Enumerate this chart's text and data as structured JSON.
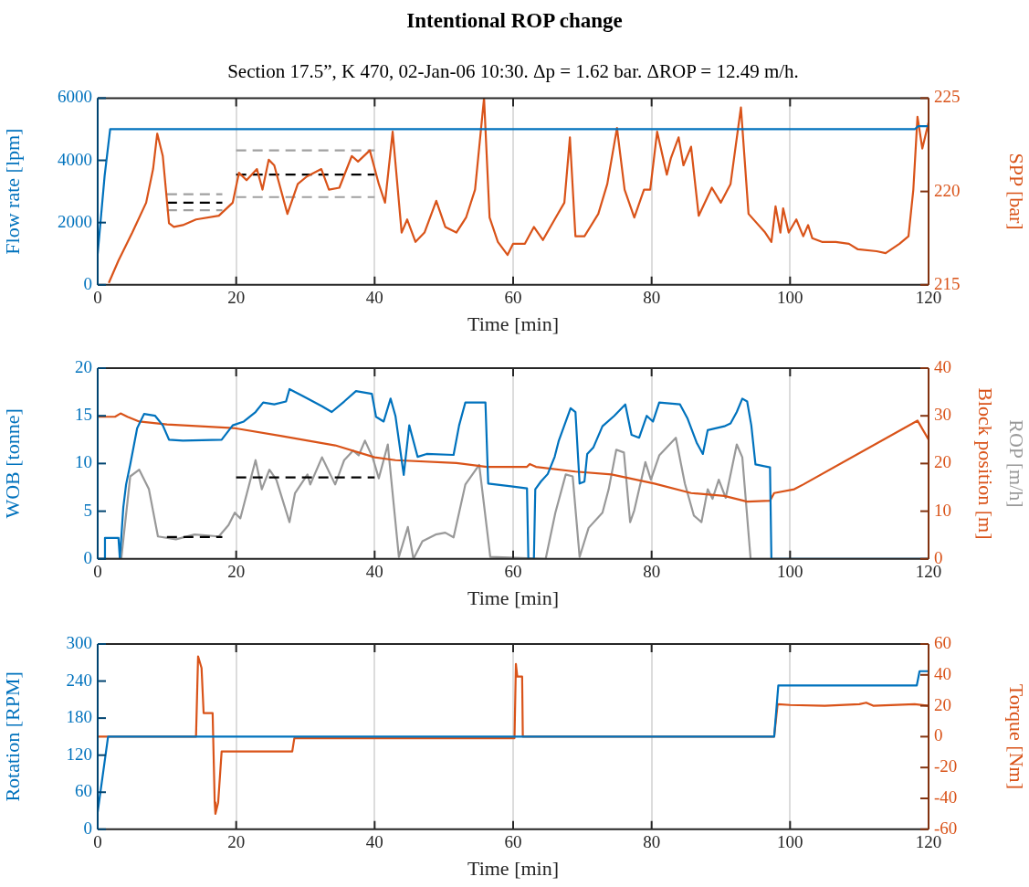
{
  "chart_data": [
    {
      "type": "line",
      "title": "Intentional ROP change",
      "subtitle": "Section 17.5”, K 470, 02-Jan-06 10:30. Δp = 1.62 bar. ΔROP = 12.49 m/h.",
      "xlabel": "Time [min]",
      "ylabel": "Flow rate [lpm]",
      "y2label": "SPP [bar]",
      "xlim": [
        0,
        120
      ],
      "xticks": [
        0,
        20,
        40,
        60,
        80,
        100,
        120
      ],
      "ylim": [
        0,
        6000
      ],
      "yticks": [
        0,
        2000,
        4000,
        6000
      ],
      "y2lim": [
        215,
        225
      ],
      "y2ticks": [
        215,
        220,
        225
      ],
      "grid": "x",
      "marker": "none",
      "series": [
        {
          "color": "#0072bd",
          "x": [
            0,
            1,
            1.8,
            60,
            118,
            118.5,
            120
          ],
          "values": [
            1000,
            3500,
            5000,
            5000,
            5000,
            5100,
            5100
          ]
        },
        {
          "color": "#d95319",
          "axis": "y2",
          "x": [
            1.6,
            3,
            5,
            7,
            8,
            8.6,
            9.4,
            10.3,
            11,
            12.3,
            14.2,
            17.5,
            19.5,
            20.4,
            21.5,
            23,
            23.8,
            24.7,
            25.5,
            27.4,
            28.9,
            30.2,
            32.3,
            33.4,
            34.9,
            36.7,
            37.6,
            39.3,
            40.6,
            41.5,
            42.6,
            43.9,
            44.7,
            45.9,
            47.2,
            48.9,
            50.2,
            51.8,
            53.2,
            54.5,
            55.8,
            56.6,
            57.8,
            59.2,
            60,
            61.7,
            63,
            64.3,
            66.3,
            67.4,
            68.2,
            69,
            70.3,
            72.3,
            73.6,
            75,
            76.1,
            77.5,
            78.9,
            79.8,
            80.8,
            82.2,
            82.8,
            83.9,
            84.6,
            85.7,
            86.8,
            88.7,
            90,
            91.4,
            92.9,
            94,
            96.4,
            97.3,
            97.9,
            98.6,
            99,
            99.8,
            100.9,
            101.9,
            102.6,
            103.2,
            104.6,
            106.6,
            108.5,
            109.8,
            112.5,
            113.8,
            115.8,
            117.1,
            117.8,
            118.4,
            119.1,
            120
          ],
          "values": [
            215.1,
            216.3,
            217.8,
            219.4,
            221.2,
            223.1,
            221.9,
            218.3,
            218.1,
            218.2,
            218.5,
            218.7,
            219.4,
            221,
            220.6,
            221.2,
            220.1,
            221.7,
            221.4,
            218.8,
            220.4,
            220.8,
            221.2,
            220.1,
            220.2,
            221.9,
            221.6,
            222.2,
            220.4,
            219.4,
            223.2,
            217.8,
            218.5,
            217.3,
            217.8,
            219.5,
            218.1,
            217.8,
            218.6,
            220.1,
            225,
            218.6,
            217.3,
            216.6,
            217.2,
            217.2,
            218.1,
            217.4,
            218.7,
            219.4,
            222.9,
            217.6,
            217.6,
            218.8,
            220.4,
            223.4,
            220.1,
            218.6,
            220.1,
            220.1,
            223.2,
            220.9,
            221.8,
            222.9,
            221.4,
            222.4,
            218.7,
            220.2,
            219.4,
            220.4,
            224.5,
            218.8,
            217.8,
            217.3,
            219.2,
            217.8,
            219.1,
            217.8,
            218.5,
            217.6,
            218.2,
            217.5,
            217.3,
            217.3,
            217.2,
            216.9,
            216.8,
            216.7,
            217.2,
            217.6,
            220.1,
            224,
            222.3,
            223.7
          ]
        },
        {
          "color": "#a0a0a0",
          "axis": "y2",
          "line_style": "dashed",
          "x": [
            10,
            18,
            19,
            20,
            40
          ],
          "values": [
            219,
            219,
            null,
            219.7,
            219.7
          ]
        },
        {
          "color": "#a0a0a0",
          "axis": "y2",
          "line_style": "dashed",
          "x": [
            10,
            18,
            19,
            20,
            40
          ],
          "values": [
            219.85,
            219.85,
            null,
            222.2,
            222.2
          ]
        },
        {
          "color": "#000000",
          "axis": "y2",
          "line_style": "dashed",
          "x": [
            10,
            18,
            19,
            20,
            40
          ],
          "values": [
            219.4,
            219.4,
            null,
            220.9,
            220.9
          ]
        }
      ]
    },
    {
      "type": "line",
      "xlabel": "Time [min]",
      "ylabel": "WOB [tonne]",
      "y2label": "Block position [m]",
      "y3label": "ROP [m/h]",
      "xlim": [
        0,
        120
      ],
      "xticks": [
        0,
        20,
        40,
        60,
        80,
        100,
        120
      ],
      "ylim": [
        0,
        20
      ],
      "yticks": [
        0,
        5,
        10,
        15,
        20
      ],
      "y2lim": [
        0,
        40
      ],
      "y2ticks": [
        0,
        10,
        20,
        30,
        40
      ],
      "grid": "x",
      "marker": "none",
      "series": [
        {
          "color": "#0072bd",
          "x": [
            0,
            1,
            1.05,
            3,
            3.2,
            3.7,
            4.1,
            4.7,
            5.7,
            6.7,
            8.3,
            9.4,
            10.3,
            12.3,
            17.9,
            19.5,
            21.1,
            22.8,
            23.9,
            25.5,
            27.2,
            27.7,
            29.8,
            32.4,
            33.8,
            35.6,
            37.3,
            39.6,
            40.2,
            41.3,
            42.3,
            43,
            44.2,
            45,
            46.2,
            47.5,
            51.4,
            52.2,
            53.1,
            56,
            56.4,
            59.7,
            62,
            62.2,
            63,
            63.2,
            64,
            65,
            66,
            66.6,
            67.4,
            68.3,
            69,
            69.6,
            70.3,
            70.7,
            71.6,
            72.9,
            74.6,
            76.2,
            77.1,
            78.2,
            79.3,
            80.2,
            81.1,
            84.1,
            85.2,
            86.5,
            87.4,
            88.1,
            90.5,
            91.4,
            92.3,
            93.1,
            93.8,
            94.4,
            95,
            97.1,
            97.3,
            120
          ],
          "values": [
            0,
            0,
            2.2,
            2.2,
            0,
            5.4,
            7.8,
            9.9,
            13.7,
            15.2,
            15,
            14,
            12.5,
            12.4,
            12.5,
            14,
            14.4,
            15.4,
            16.4,
            16.2,
            16.5,
            17.8,
            17,
            16,
            15.4,
            16.5,
            17.6,
            17.3,
            14.9,
            14.4,
            16.8,
            15,
            8.8,
            14,
            10.7,
            11,
            10.9,
            14,
            16.4,
            16.4,
            7.9,
            7.6,
            7.4,
            0,
            0,
            7.3,
            8.1,
            8.9,
            10.7,
            12.4,
            14,
            15.8,
            15.4,
            7.9,
            8.1,
            11,
            11.7,
            13.9,
            15,
            16.2,
            13,
            12.7,
            15,
            14.4,
            16.4,
            16.2,
            14.7,
            12.2,
            11,
            13.5,
            13.9,
            14.2,
            15.4,
            16.8,
            16.5,
            14,
            9.9,
            9.6,
            0,
            0
          ]
        },
        {
          "color": "#d95319",
          "axis": "y2",
          "x": [
            0,
            2.5,
            3.3,
            4.3,
            6,
            10,
            19.8,
            26.4,
            34.3,
            40,
            43,
            51.8,
            56.2,
            61,
            62,
            62.4,
            63.3,
            69,
            74.2,
            80.4,
            85.7,
            90.5,
            93.8,
            97.1,
            97.7,
            100.6,
            101.9,
            118.4,
            120
          ],
          "values": [
            29.8,
            29.8,
            30.5,
            29.8,
            28.8,
            28.2,
            27.4,
            25.8,
            23.8,
            21.3,
            20.7,
            20.1,
            19.3,
            19.3,
            19.3,
            19.9,
            19.3,
            18.3,
            17.7,
            15.8,
            13.8,
            13.2,
            12,
            12.2,
            13.8,
            14.6,
            15.6,
            29,
            25
          ]
        },
        {
          "color": "#000000",
          "axis": "y2",
          "line_style": "dashed",
          "x": [
            10,
            18,
            19,
            20,
            40
          ],
          "values": [
            4.6,
            4.6,
            null,
            17.1,
            17.1
          ]
        },
        {
          "color": "#999999",
          "axis": "y2",
          "x": [
            0,
            3.4,
            4.7,
            6,
            7.4,
            8.7,
            11.3,
            14,
            17.5,
            18.9,
            19.8,
            20.6,
            22.8,
            23.7,
            24.8,
            25.8,
            27.7,
            28.5,
            30.3,
            30.7,
            32.4,
            34.3,
            35.6,
            36.9,
            37.7,
            38.6,
            39.7,
            40.6,
            41.9,
            43.5,
            44.8,
            45.6,
            46.9,
            48.8,
            50.2,
            51.4,
            53.1,
            55.1,
            56.7,
            64.7,
            66.1,
            67.6,
            68.6,
            69.6,
            70.9,
            72.9,
            73.8,
            74.9,
            76,
            76.9,
            77.5,
            79.1,
            79.9,
            81.1,
            83.5,
            84.8,
            86.1,
            87.2,
            88.1,
            88.8,
            89.7,
            90.7,
            92.3,
            93.1,
            94.3,
            120
          ],
          "values": [
            0,
            0,
            17.3,
            18.7,
            14.6,
            4.7,
            4.1,
            5.1,
            4.7,
            7.1,
            9.7,
            8.5,
            20.7,
            14.6,
            18.7,
            16.6,
            7.7,
            13.8,
            17.7,
            15.6,
            21.3,
            15.6,
            20.7,
            22.7,
            21.7,
            24.8,
            21.3,
            16.9,
            24,
            0.4,
            6.7,
            0,
            3.7,
            5.1,
            5.5,
            4.5,
            15.6,
            19.7,
            0.4,
            0,
            9.7,
            17.7,
            17.3,
            0.4,
            6.5,
            9.7,
            14.6,
            22.9,
            22.3,
            7.7,
            10.2,
            20.3,
            16.6,
            21.7,
            25.4,
            15.8,
            9.1,
            7.7,
            14.6,
            12.6,
            16.6,
            12.8,
            24,
            21.3,
            0,
            0
          ]
        }
      ]
    },
    {
      "type": "line",
      "xlabel": "Time [min]",
      "ylabel": "Rotation [RPM]",
      "y2label": "Torque [Nm]",
      "xlim": [
        0,
        120
      ],
      "xticks": [
        0,
        20,
        40,
        60,
        80,
        100,
        120
      ],
      "ylim": [
        0,
        300
      ],
      "yticks": [
        0,
        60,
        120,
        180,
        240,
        300
      ],
      "y2lim": [
        -60,
        60
      ],
      "y2ticks": [
        -60,
        -40,
        -20,
        0,
        20,
        40,
        60
      ],
      "grid": "x",
      "marker": "none",
      "series": [
        {
          "color": "#0072bd",
          "x": [
            0,
            1.5,
            97.7,
            98.3,
            118.3,
            118.7,
            120
          ],
          "values": [
            28,
            150,
            150,
            233,
            233,
            256,
            256
          ]
        },
        {
          "color": "#d95319",
          "axis": "y2",
          "x": [
            0,
            14.2,
            14.5,
            15,
            15.3,
            16.6,
            16.9,
            17,
            17.4,
            17.9,
            28.1,
            28.4,
            60.2,
            60.4,
            60.6,
            61.3,
            61.4,
            97.7,
            98.2,
            100,
            105,
            110,
            111,
            112,
            118,
            120
          ],
          "values": [
            0,
            0,
            52,
            44.5,
            15.2,
            15.2,
            -42.6,
            -50,
            -42.6,
            -9.6,
            -9.6,
            -1,
            -1,
            47,
            38.9,
            38.9,
            0,
            0,
            21,
            20.5,
            20,
            21,
            22,
            20,
            21,
            20
          ]
        }
      ]
    }
  ]
}
